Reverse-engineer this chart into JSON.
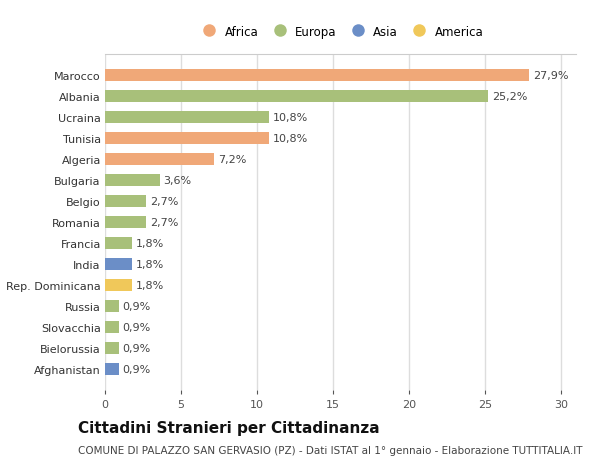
{
  "categories": [
    "Afghanistan",
    "Bielorussia",
    "Slovacchia",
    "Russia",
    "Rep. Dominicana",
    "India",
    "Francia",
    "Romania",
    "Belgio",
    "Bulgaria",
    "Algeria",
    "Tunisia",
    "Ucraina",
    "Albania",
    "Marocco"
  ],
  "values": [
    0.9,
    0.9,
    0.9,
    0.9,
    1.8,
    1.8,
    1.8,
    2.7,
    2.7,
    3.6,
    7.2,
    10.8,
    10.8,
    25.2,
    27.9
  ],
  "colors": [
    "#6b8ec7",
    "#a8c07a",
    "#a8c07a",
    "#a8c07a",
    "#f0c85a",
    "#6b8ec7",
    "#a8c07a",
    "#a8c07a",
    "#a8c07a",
    "#a8c07a",
    "#f0a878",
    "#f0a878",
    "#a8c07a",
    "#a8c07a",
    "#f0a878"
  ],
  "labels": [
    "0,9%",
    "0,9%",
    "0,9%",
    "0,9%",
    "1,8%",
    "1,8%",
    "1,8%",
    "2,7%",
    "2,7%",
    "3,6%",
    "7,2%",
    "10,8%",
    "10,8%",
    "25,2%",
    "27,9%"
  ],
  "legend": [
    {
      "label": "Africa",
      "color": "#f0a878"
    },
    {
      "label": "Europa",
      "color": "#a8c07a"
    },
    {
      "label": "Asia",
      "color": "#6b8ec7"
    },
    {
      "label": "America",
      "color": "#f0c85a"
    }
  ],
  "xlim": [
    0,
    31
  ],
  "xticks": [
    0,
    5,
    10,
    15,
    20,
    25,
    30
  ],
  "title": "Cittadini Stranieri per Cittadinanza",
  "subtitle": "COMUNE DI PALAZZO SAN GERVASIO (PZ) - Dati ISTAT al 1° gennaio - Elaborazione TUTTITALIA.IT",
  "bg_color": "#ffffff",
  "plot_bg_color": "#ffffff",
  "bar_height": 0.55,
  "grid_color": "#dddddd",
  "title_fontsize": 11,
  "subtitle_fontsize": 7.5,
  "tick_fontsize": 8,
  "label_fontsize": 8
}
